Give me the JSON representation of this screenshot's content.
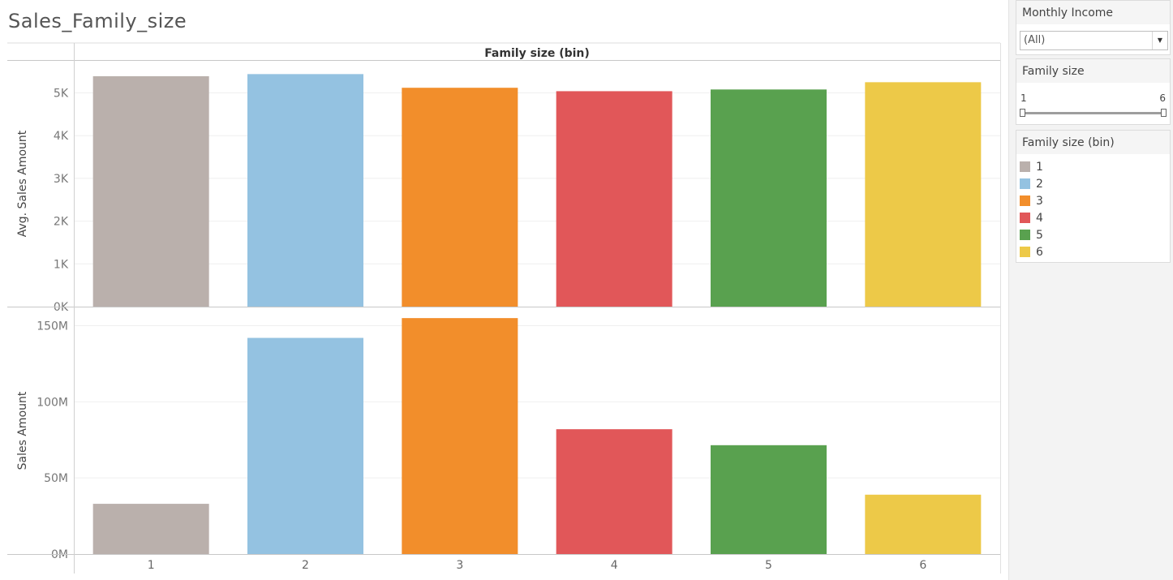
{
  "page": {
    "title": "Sales_Family_size"
  },
  "colors": [
    "#bab0ac",
    "#94c2e1",
    "#f28e2b",
    "#e15759",
    "#59a14f",
    "#edc948"
  ],
  "sidebar": {
    "filters": [
      {
        "title": "Monthly Income",
        "value": "(All)",
        "button_icon": "dropdown-arrow"
      },
      {
        "title": "Family size",
        "min": "1",
        "max": "6",
        "range": [
          1,
          6
        ]
      }
    ],
    "legend": {
      "title": "Family size (bin)",
      "items": [
        {
          "label": "1",
          "color": "#bab0ac"
        },
        {
          "label": "2",
          "color": "#94c2e1"
        },
        {
          "label": "3",
          "color": "#f28e2b"
        },
        {
          "label": "4",
          "color": "#e15759"
        },
        {
          "label": "5",
          "color": "#59a14f"
        },
        {
          "label": "6",
          "color": "#edc948"
        }
      ]
    }
  },
  "chart_data": {
    "type": "bar",
    "column_header": "Family size (bin)",
    "categories": [
      "1",
      "2",
      "3",
      "4",
      "5",
      "6"
    ],
    "panels": [
      {
        "ylabel": "Avg. Sales Amount",
        "yticks": [
          0,
          1000,
          2000,
          3000,
          4000,
          5000
        ],
        "ytick_labels": [
          "0K",
          "1K",
          "2K",
          "3K",
          "4K",
          "5K"
        ],
        "ylim": [
          0,
          5750
        ],
        "values": [
          5390,
          5440,
          5120,
          5040,
          5080,
          5250
        ]
      },
      {
        "ylabel": "Sales Amount",
        "yticks": [
          0,
          50000000,
          100000000,
          150000000
        ],
        "ytick_labels": [
          "0M",
          "50M",
          "100M",
          "150M"
        ],
        "ylim": [
          0,
          162000000
        ],
        "values": [
          33000000,
          142000000,
          155000000,
          82000000,
          71500000,
          39000000
        ]
      }
    ]
  }
}
